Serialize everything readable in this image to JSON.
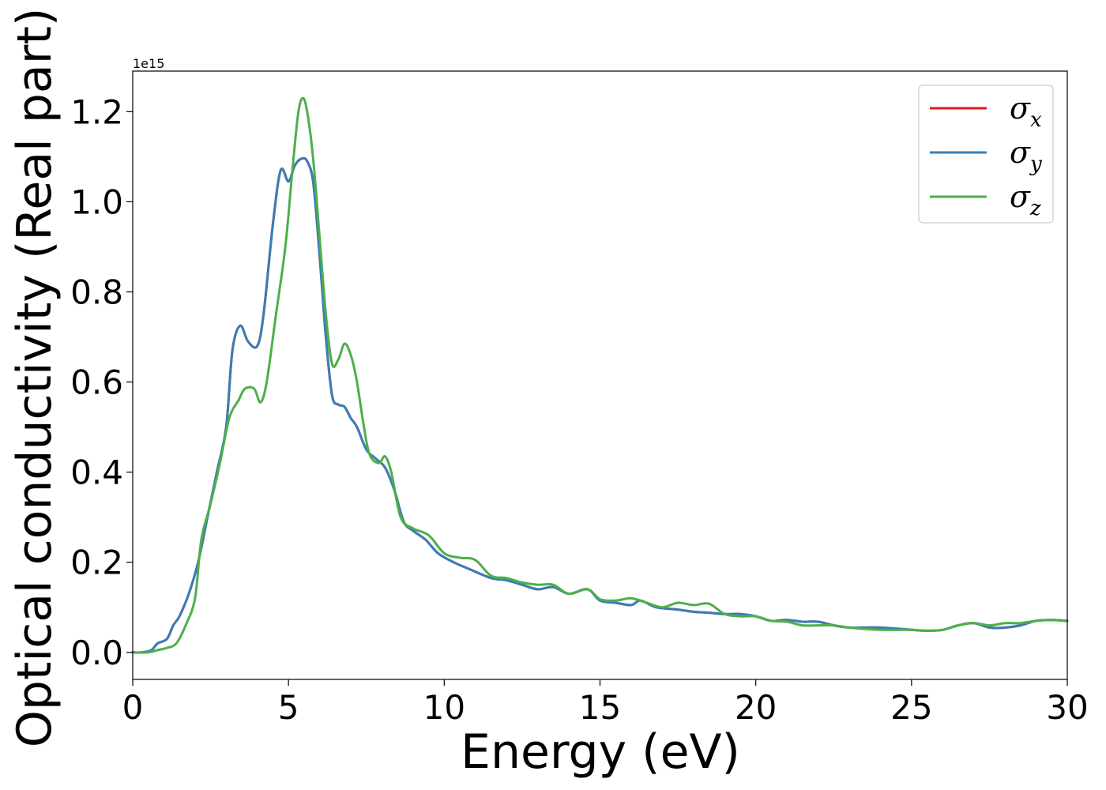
{
  "chart_data": {
    "type": "line",
    "xlabel": "Energy (eV)",
    "ylabel": "Optical conductivity (Real part)",
    "y_offset_label": "1e15",
    "xlim": [
      0,
      30
    ],
    "ylim": [
      -0.06,
      1.29
    ],
    "x_ticks": [
      0,
      5,
      10,
      15,
      20,
      25,
      30
    ],
    "x_tick_labels": [
      "0",
      "5",
      "10",
      "15",
      "20",
      "25",
      "30"
    ],
    "y_ticks": [
      0.0,
      0.2,
      0.4,
      0.6,
      0.8,
      1.0,
      1.2
    ],
    "y_tick_labels": [
      "0.0",
      "0.2",
      "0.4",
      "0.6",
      "0.8",
      "1.0",
      "1.2"
    ],
    "grid": false,
    "legend_position": "top-right",
    "series": [
      {
        "name": "σx",
        "symbol": "σ",
        "subscript": "x",
        "color": "#e41a1c",
        "x": [
          0,
          0.3,
          0.6,
          0.8,
          1.1,
          1.3,
          1.5,
          1.8,
          2.1,
          2.4,
          2.7,
          3.0,
          3.2,
          3.45,
          3.7,
          4.0,
          4.2,
          4.5,
          4.75,
          5.0,
          5.2,
          5.4,
          5.6,
          5.8,
          6.0,
          6.2,
          6.4,
          6.6,
          6.8,
          7.0,
          7.2,
          7.5,
          7.8,
          8.1,
          8.4,
          8.7,
          9.0,
          9.4,
          9.8,
          10.3,
          10.8,
          11.5,
          12.0,
          12.5,
          13.0,
          13.5,
          14.0,
          14.6,
          15.0,
          15.5,
          16.0,
          16.3,
          16.8,
          17.5,
          18.0,
          18.5,
          19.0,
          19.5,
          20.0,
          20.5,
          21.0,
          21.5,
          22.0,
          22.5,
          23.0,
          24.0,
          25.0,
          25.5,
          26.0,
          26.5,
          27.0,
          27.5,
          28.0,
          28.5,
          29.0,
          29.5,
          30.0
        ],
        "y": [
          0.0,
          0.0,
          0.005,
          0.02,
          0.03,
          0.06,
          0.08,
          0.13,
          0.2,
          0.3,
          0.4,
          0.5,
          0.67,
          0.725,
          0.69,
          0.68,
          0.75,
          0.95,
          1.07,
          1.045,
          1.08,
          1.095,
          1.09,
          1.04,
          0.88,
          0.7,
          0.57,
          0.55,
          0.545,
          0.52,
          0.5,
          0.45,
          0.43,
          0.41,
          0.36,
          0.29,
          0.27,
          0.25,
          0.22,
          0.2,
          0.185,
          0.165,
          0.16,
          0.15,
          0.14,
          0.145,
          0.13,
          0.14,
          0.115,
          0.11,
          0.105,
          0.115,
          0.1,
          0.095,
          0.09,
          0.088,
          0.085,
          0.085,
          0.08,
          0.07,
          0.072,
          0.068,
          0.068,
          0.06,
          0.055,
          0.055,
          0.05,
          0.048,
          0.05,
          0.06,
          0.065,
          0.055,
          0.055,
          0.06,
          0.07,
          0.072,
          0.07
        ]
      },
      {
        "name": "σy",
        "symbol": "σ",
        "subscript": "y",
        "color": "#377eb8",
        "x": [
          0,
          0.3,
          0.6,
          0.8,
          1.1,
          1.3,
          1.5,
          1.8,
          2.1,
          2.4,
          2.7,
          3.0,
          3.2,
          3.45,
          3.7,
          4.0,
          4.2,
          4.5,
          4.75,
          5.0,
          5.2,
          5.4,
          5.6,
          5.8,
          6.0,
          6.2,
          6.4,
          6.6,
          6.8,
          7.0,
          7.2,
          7.5,
          7.8,
          8.1,
          8.4,
          8.7,
          9.0,
          9.4,
          9.8,
          10.3,
          10.8,
          11.5,
          12.0,
          12.5,
          13.0,
          13.5,
          14.0,
          14.6,
          15.0,
          15.5,
          16.0,
          16.3,
          16.8,
          17.5,
          18.0,
          18.5,
          19.0,
          19.5,
          20.0,
          20.5,
          21.0,
          21.5,
          22.0,
          22.5,
          23.0,
          24.0,
          25.0,
          25.5,
          26.0,
          26.5,
          27.0,
          27.5,
          28.0,
          28.5,
          29.0,
          29.5,
          30.0
        ],
        "y": [
          0.0,
          0.0,
          0.005,
          0.02,
          0.03,
          0.06,
          0.08,
          0.13,
          0.2,
          0.3,
          0.4,
          0.5,
          0.67,
          0.725,
          0.69,
          0.68,
          0.75,
          0.95,
          1.07,
          1.045,
          1.08,
          1.095,
          1.09,
          1.04,
          0.88,
          0.7,
          0.57,
          0.55,
          0.545,
          0.52,
          0.5,
          0.45,
          0.43,
          0.41,
          0.36,
          0.29,
          0.27,
          0.25,
          0.22,
          0.2,
          0.185,
          0.165,
          0.16,
          0.15,
          0.14,
          0.145,
          0.13,
          0.14,
          0.115,
          0.11,
          0.105,
          0.115,
          0.1,
          0.095,
          0.09,
          0.088,
          0.085,
          0.085,
          0.08,
          0.07,
          0.072,
          0.068,
          0.068,
          0.06,
          0.055,
          0.055,
          0.05,
          0.048,
          0.05,
          0.06,
          0.065,
          0.055,
          0.055,
          0.06,
          0.07,
          0.072,
          0.07
        ]
      },
      {
        "name": "σz",
        "symbol": "σ",
        "subscript": "z",
        "color": "#4daf4a",
        "x": [
          0,
          0.5,
          0.8,
          1.1,
          1.4,
          1.7,
          2.0,
          2.2,
          2.5,
          2.8,
          3.1,
          3.4,
          3.6,
          3.9,
          4.1,
          4.3,
          4.6,
          4.9,
          5.1,
          5.3,
          5.45,
          5.6,
          5.8,
          6.0,
          6.2,
          6.4,
          6.6,
          6.8,
          7.0,
          7.2,
          7.4,
          7.6,
          7.9,
          8.1,
          8.3,
          8.6,
          9.0,
          9.5,
          10.0,
          10.5,
          11.0,
          11.5,
          12.0,
          12.5,
          13.0,
          13.5,
          14.0,
          14.6,
          15.0,
          15.5,
          16.0,
          16.5,
          17.0,
          17.5,
          18.0,
          18.5,
          19.0,
          19.5,
          20.0,
          20.5,
          21.0,
          21.5,
          22.0,
          22.5,
          23.0,
          24.0,
          25.0,
          25.5,
          26.0,
          26.5,
          27.0,
          27.5,
          28.0,
          28.5,
          29.0,
          29.5,
          30.0
        ],
        "y": [
          0.0,
          0.0,
          0.005,
          0.01,
          0.02,
          0.06,
          0.12,
          0.25,
          0.33,
          0.42,
          0.52,
          0.56,
          0.585,
          0.585,
          0.555,
          0.6,
          0.75,
          0.9,
          1.05,
          1.19,
          1.23,
          1.2,
          1.09,
          0.92,
          0.75,
          0.64,
          0.65,
          0.685,
          0.66,
          0.6,
          0.51,
          0.44,
          0.42,
          0.435,
          0.4,
          0.3,
          0.275,
          0.26,
          0.22,
          0.21,
          0.205,
          0.17,
          0.165,
          0.155,
          0.15,
          0.15,
          0.13,
          0.14,
          0.118,
          0.115,
          0.12,
          0.11,
          0.1,
          0.11,
          0.105,
          0.108,
          0.085,
          0.08,
          0.08,
          0.07,
          0.068,
          0.06,
          0.06,
          0.06,
          0.055,
          0.05,
          0.05,
          0.048,
          0.05,
          0.06,
          0.065,
          0.06,
          0.065,
          0.065,
          0.07,
          0.072,
          0.07
        ]
      }
    ]
  }
}
